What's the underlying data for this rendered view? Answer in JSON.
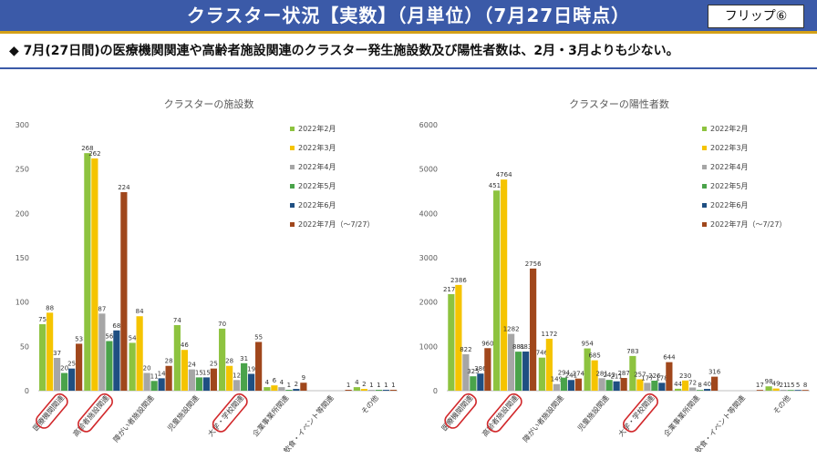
{
  "header": {
    "title": "クラスター状況【実数】（月単位）（7月27日時点）",
    "flip_label": "フリップ⑥"
  },
  "headline": "◆ 7月(27日間)の医療機関関連や高齢者施設関連のクラスター発生施設数及び陽性者数は、2月・3月よりも少ない。",
  "colors": {
    "banner": "#3b5aa8",
    "feb": "#8dc33f",
    "mar": "#f5c400",
    "apr": "#a6a6a6",
    "may": "#4aa34a",
    "jun": "#1f4f82",
    "jul": "#a0471c",
    "highlight": "#d1282b"
  },
  "chart_data": [
    {
      "type": "bar",
      "title": "クラスターの施設数",
      "ylim": [
        0,
        300
      ],
      "yticks": [
        "0",
        "50",
        "100",
        "150",
        "200",
        "250",
        "300"
      ],
      "categories": [
        "医療機関関連",
        "高齢者施設関連",
        "障がい者施設関連",
        "児童施設関連",
        "大学・学校関連",
        "企業事業所関連",
        "飲食・イベント等関連",
        "その他"
      ],
      "highlighted_categories": [
        0,
        1,
        4
      ],
      "legend_position": "top-right",
      "series": [
        {
          "name": "2022年2月",
          "values": [
            75,
            268,
            54,
            74,
            70,
            4,
            null,
            4
          ]
        },
        {
          "name": "2022年3月",
          "values": [
            88,
            262,
            84,
            46,
            28,
            6,
            null,
            2
          ]
        },
        {
          "name": "2022年4月",
          "values": [
            37,
            87,
            20,
            24,
            12,
            4,
            null,
            1
          ]
        },
        {
          "name": "2022年5月",
          "values": [
            20,
            56,
            11,
            15,
            31,
            1,
            null,
            1
          ]
        },
        {
          "name": "2022年6月",
          "values": [
            25,
            68,
            14,
            15,
            19,
            2,
            null,
            1
          ]
        },
        {
          "name": "2022年7月（～7/27）",
          "values": [
            53,
            224,
            28,
            25,
            55,
            9,
            1,
            1
          ]
        }
      ]
    },
    {
      "type": "bar",
      "title": "クラスターの陽性者数",
      "ylim": [
        0,
        6000
      ],
      "yticks": [
        "0",
        "1000",
        "2000",
        "3000",
        "4000",
        "5000",
        "6000"
      ],
      "categories": [
        "医療機関関連",
        "高齢者施設関連",
        "障がい者施設関連",
        "児童施設関連",
        "大学・学校関連",
        "企業事業所関連",
        "飲食・イベント等関連",
        "その他"
      ],
      "highlighted_categories": [
        0,
        1,
        4
      ],
      "legend_position": "top-right",
      "series": [
        {
          "name": "2022年2月",
          "values": [
            2178,
            4516,
            746,
            954,
            783,
            44,
            null,
            98
          ]
        },
        {
          "name": "2022年3月",
          "values": [
            2386,
            4764,
            1172,
            685,
            257,
            230,
            null,
            49
          ]
        },
        {
          "name": "2022年4月",
          "values": [
            822,
            1282,
            149,
            281,
            177,
            72,
            null,
            21
          ]
        },
        {
          "name": "2022年5月",
          "values": [
            325,
            881,
            294,
            243,
            226,
            8,
            null,
            15
          ]
        },
        {
          "name": "2022年6月",
          "values": [
            386,
            883,
            241,
            211,
            178,
            40,
            null,
            5
          ]
        },
        {
          "name": "2022年7月（～7/27）",
          "values": [
            960,
            2756,
            274,
            287,
            644,
            316,
            17,
            8
          ]
        }
      ]
    }
  ]
}
